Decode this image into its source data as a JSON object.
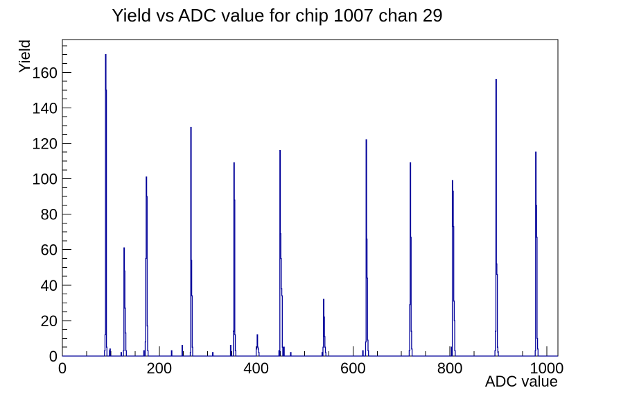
{
  "title": "Yield vs ADC value for chip 1007 chan 29",
  "chart_data": {
    "type": "bar",
    "title": "Yield vs ADC value for chip 1007 chan 29",
    "xlabel": "ADC value",
    "ylabel": "Yield",
    "xlim": [
      0,
      1023
    ],
    "ylim": [
      0,
      178.5
    ],
    "grid": false,
    "legend": "none",
    "x_ticks": {
      "major": [
        0,
        200,
        400,
        600,
        800,
        1000
      ],
      "minor_step": 50
    },
    "y_ticks": {
      "major": [
        0,
        20,
        40,
        60,
        80,
        100,
        120,
        140,
        160
      ],
      "minor_step": 5
    },
    "line_color": "#000099",
    "frame_color": "#000000",
    "bins_note": "pairs of [ADC value, Yield]; all other bins are 0",
    "bins": [
      [
        87,
        3
      ],
      [
        88,
        12
      ],
      [
        89,
        170
      ],
      [
        90,
        150
      ],
      [
        91,
        5
      ],
      [
        97,
        3
      ],
      [
        98,
        4
      ],
      [
        121,
        2
      ],
      [
        126,
        3
      ],
      [
        127,
        61
      ],
      [
        128,
        48
      ],
      [
        129,
        27
      ],
      [
        130,
        13
      ],
      [
        131,
        3
      ],
      [
        168,
        3
      ],
      [
        171,
        8
      ],
      [
        172,
        55
      ],
      [
        173,
        101
      ],
      [
        174,
        90
      ],
      [
        175,
        17
      ],
      [
        176,
        3
      ],
      [
        225,
        3
      ],
      [
        247,
        6
      ],
      [
        264,
        2
      ],
      [
        265,
        129
      ],
      [
        266,
        54
      ],
      [
        267,
        34
      ],
      [
        268,
        5
      ],
      [
        310,
        2
      ],
      [
        347,
        6
      ],
      [
        353,
        14
      ],
      [
        354,
        109
      ],
      [
        355,
        88
      ],
      [
        356,
        12
      ],
      [
        357,
        3
      ],
      [
        400,
        4
      ],
      [
        401,
        5
      ],
      [
        402,
        12
      ],
      [
        403,
        5
      ],
      [
        404,
        4
      ],
      [
        405,
        2
      ],
      [
        447,
        3
      ],
      [
        449,
        116
      ],
      [
        450,
        69
      ],
      [
        451,
        55
      ],
      [
        452,
        38
      ],
      [
        453,
        34
      ],
      [
        454,
        5
      ],
      [
        457,
        5
      ],
      [
        471,
        2
      ],
      [
        536,
        2
      ],
      [
        538,
        5
      ],
      [
        539,
        32
      ],
      [
        540,
        22
      ],
      [
        541,
        11
      ],
      [
        542,
        5
      ],
      [
        543,
        2
      ],
      [
        620,
        3
      ],
      [
        626,
        8
      ],
      [
        627,
        122
      ],
      [
        628,
        66
      ],
      [
        629,
        44
      ],
      [
        630,
        9
      ],
      [
        631,
        3
      ],
      [
        716,
        3
      ],
      [
        717,
        29
      ],
      [
        718,
        109
      ],
      [
        719,
        67
      ],
      [
        720,
        14
      ],
      [
        721,
        4
      ],
      [
        803,
        5
      ],
      [
        805,
        99
      ],
      [
        806,
        93
      ],
      [
        807,
        73
      ],
      [
        808,
        31
      ],
      [
        809,
        20
      ],
      [
        810,
        3
      ],
      [
        893,
        3
      ],
      [
        894,
        14
      ],
      [
        895,
        156
      ],
      [
        896,
        52
      ],
      [
        897,
        46
      ],
      [
        898,
        5
      ],
      [
        899,
        2
      ],
      [
        976,
        3
      ],
      [
        977,
        115
      ],
      [
        978,
        85
      ],
      [
        979,
        67
      ],
      [
        980,
        10
      ],
      [
        981,
        4
      ]
    ]
  }
}
